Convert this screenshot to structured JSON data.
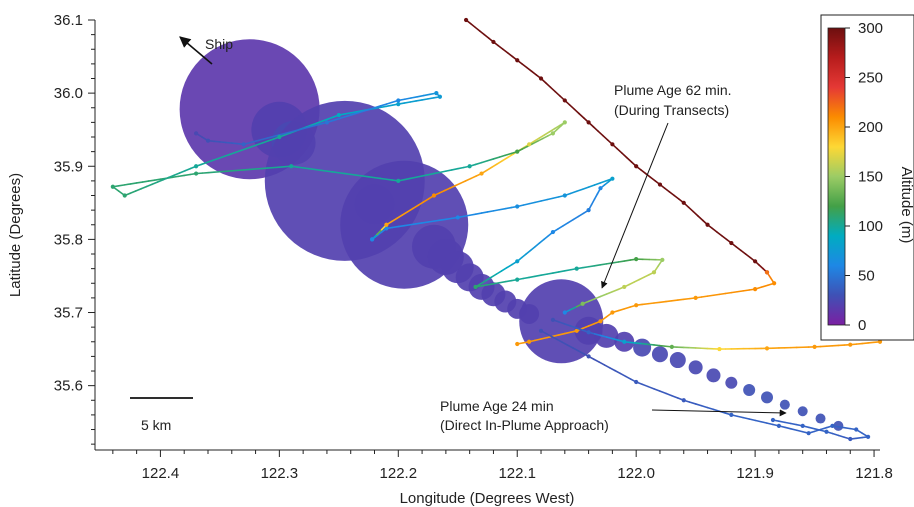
{
  "chart_data": {
    "type": "scatter",
    "xlabel": "Longitude (Degrees West)",
    "ylabel": "Latitude (Degrees)",
    "xlim": [
      122.455,
      121.795
    ],
    "ylim": [
      35.512,
      36.1
    ],
    "x_ticks": [
      122.4,
      122.3,
      122.2,
      122.1,
      122.0,
      121.9,
      121.8
    ],
    "x_tick_labels": [
      "122.4",
      "122.3",
      "122.2",
      "122.1",
      "122.0",
      "121.9",
      "121.8"
    ],
    "y_ticks": [
      35.6,
      35.7,
      35.8,
      35.9,
      36.0,
      36.1
    ],
    "y_tick_labels": [
      "35.6",
      "35.7",
      "35.8",
      "35.9",
      "36.0",
      "36.1"
    ],
    "colorbar": {
      "label": "Altitude (m)",
      "min": 0,
      "max": 300,
      "ticks": [
        0,
        50,
        100,
        150,
        200,
        250,
        300
      ],
      "tick_labels": [
        "0",
        "50",
        "100",
        "150",
        "200",
        "250",
        "300"
      ],
      "colors": [
        "#7b1fa2",
        "#3f51b5",
        "#1e88e5",
        "#00acc1",
        "#43a047",
        "#9ccc65",
        "#fdd835",
        "#fb8c00",
        "#e53935",
        "#b71c1c",
        "#6d0f0f"
      ]
    },
    "annotations": {
      "ship_label": "Ship",
      "plume62_line1": "Plume Age 62 min.",
      "plume62_line2": "(During Transects)",
      "plume24_line1": "Plume Age 24 min",
      "plume24_line2": "(Direct In-Plume Approach)",
      "scale_label": "5 km"
    },
    "series": [
      {
        "points": [
          [
            122.143,
            36.1,
            300
          ],
          [
            122.12,
            36.07,
            300
          ],
          [
            122.1,
            36.045,
            300
          ],
          [
            122.08,
            36.02,
            300
          ],
          [
            122.06,
            35.99,
            300
          ],
          [
            122.04,
            35.96,
            300
          ],
          [
            122.02,
            35.93,
            300
          ],
          [
            122.0,
            35.9,
            300
          ],
          [
            121.98,
            35.875,
            300
          ],
          [
            121.96,
            35.85,
            300
          ],
          [
            121.94,
            35.82,
            300
          ],
          [
            121.92,
            35.795,
            300
          ],
          [
            121.9,
            35.77,
            300
          ],
          [
            121.89,
            35.755,
            290
          ]
        ]
      },
      {
        "points": [
          [
            121.89,
            35.755,
            220
          ],
          [
            121.884,
            35.74,
            210
          ],
          [
            121.9,
            35.732,
            210
          ],
          [
            121.95,
            35.72,
            205
          ],
          [
            122.0,
            35.71,
            205
          ],
          [
            122.02,
            35.7,
            205
          ],
          [
            122.03,
            35.688,
            205
          ],
          [
            122.05,
            35.675,
            205
          ],
          [
            122.09,
            35.66,
            205
          ],
          [
            122.1,
            35.657,
            205
          ]
        ]
      },
      {
        "points": [
          [
            122.07,
            35.69,
            30
          ],
          [
            122.04,
            35.673,
            40
          ],
          [
            122.01,
            35.66,
            80
          ],
          [
            121.97,
            35.653,
            130
          ],
          [
            121.93,
            35.65,
            180
          ],
          [
            121.89,
            35.651,
            200
          ],
          [
            121.85,
            35.653,
            205
          ],
          [
            121.82,
            35.656,
            205
          ],
          [
            121.795,
            35.66,
            205
          ]
        ]
      },
      {
        "points": [
          [
            122.06,
            35.7,
            60
          ],
          [
            122.045,
            35.712,
            140
          ],
          [
            122.01,
            35.735,
            160
          ],
          [
            121.985,
            35.755,
            160
          ],
          [
            121.978,
            35.772,
            150
          ],
          [
            122.0,
            35.773,
            120
          ],
          [
            122.05,
            35.76,
            100
          ],
          [
            122.1,
            35.745,
            100
          ],
          [
            122.135,
            35.735,
            110
          ]
        ]
      },
      {
        "points": [
          [
            122.135,
            35.735,
            110
          ],
          [
            122.1,
            35.77,
            80
          ],
          [
            122.07,
            35.81,
            60
          ],
          [
            122.04,
            35.84,
            55
          ],
          [
            122.03,
            35.87,
            60
          ],
          [
            122.02,
            35.883,
            80
          ],
          [
            122.06,
            35.86,
            70
          ],
          [
            122.1,
            35.845,
            65
          ],
          [
            122.15,
            35.83,
            60
          ],
          [
            122.21,
            35.815,
            60
          ],
          [
            122.222,
            35.8,
            60
          ]
        ]
      },
      {
        "points": [
          [
            122.222,
            35.8,
            60
          ],
          [
            122.21,
            35.82,
            200
          ],
          [
            122.17,
            35.86,
            210
          ],
          [
            122.13,
            35.89,
            200
          ],
          [
            122.09,
            35.93,
            170
          ],
          [
            122.06,
            35.96,
            150
          ],
          [
            122.07,
            35.945,
            150
          ],
          [
            122.1,
            35.92,
            120
          ],
          [
            122.14,
            35.9,
            100
          ],
          [
            122.2,
            35.88,
            100
          ],
          [
            122.29,
            35.9,
            100
          ],
          [
            122.37,
            35.89,
            110
          ],
          [
            122.44,
            35.872,
            110
          ],
          [
            122.43,
            35.86,
            110
          ],
          [
            122.37,
            35.9,
            100
          ],
          [
            122.3,
            35.94,
            100
          ],
          [
            122.25,
            35.97,
            90
          ],
          [
            122.2,
            35.985,
            80
          ],
          [
            122.165,
            35.995,
            75
          ],
          [
            122.168,
            36.0,
            70
          ],
          [
            122.2,
            35.99,
            60
          ],
          [
            122.26,
            35.96,
            50
          ],
          [
            122.33,
            35.93,
            40
          ],
          [
            122.36,
            35.935,
            30
          ],
          [
            122.37,
            35.945,
            25
          ]
        ]
      },
      {
        "points": [
          [
            121.885,
            35.553,
            40
          ],
          [
            121.86,
            35.545,
            40
          ],
          [
            121.84,
            35.537,
            40
          ],
          [
            121.82,
            35.527,
            35
          ],
          [
            121.805,
            35.53,
            40
          ],
          [
            121.815,
            35.54,
            40
          ],
          [
            121.835,
            35.545,
            40
          ],
          [
            121.855,
            35.535,
            40
          ],
          [
            121.88,
            35.545,
            40
          ],
          [
            121.92,
            35.56,
            40
          ],
          [
            121.96,
            35.58,
            35
          ],
          [
            122.0,
            35.605,
            35
          ],
          [
            122.04,
            35.64,
            30
          ],
          [
            122.08,
            35.675,
            30
          ]
        ]
      }
    ],
    "markers": [
      [
        122.325,
        35.978,
        15,
        70
      ],
      [
        122.3,
        35.95,
        20,
        28
      ],
      [
        122.288,
        35.932,
        25,
        22
      ],
      [
        122.245,
        35.88,
        20,
        80
      ],
      [
        122.22,
        35.848,
        25,
        20
      ],
      [
        122.195,
        35.82,
        20,
        64
      ],
      [
        122.17,
        35.79,
        20,
        22
      ],
      [
        122.16,
        35.776,
        20,
        18
      ],
      [
        122.15,
        35.762,
        20,
        16
      ],
      [
        122.14,
        35.748,
        20,
        14
      ],
      [
        122.13,
        35.735,
        20,
        13
      ],
      [
        122.12,
        35.725,
        20,
        12
      ],
      [
        122.11,
        35.715,
        20,
        11
      ],
      [
        122.1,
        35.705,
        20,
        10
      ],
      [
        122.09,
        35.698,
        20,
        10
      ],
      [
        122.063,
        35.688,
        20,
        42
      ],
      [
        122.04,
        35.675,
        20,
        14
      ],
      [
        122.025,
        35.668,
        20,
        12
      ],
      [
        122.01,
        35.66,
        20,
        10
      ],
      [
        121.995,
        35.652,
        25,
        9
      ],
      [
        121.98,
        35.643,
        25,
        8
      ],
      [
        121.965,
        35.635,
        25,
        8
      ],
      [
        121.95,
        35.625,
        25,
        7
      ],
      [
        121.935,
        35.614,
        25,
        7
      ],
      [
        121.92,
        35.604,
        25,
        6
      ],
      [
        121.905,
        35.594,
        30,
        6
      ],
      [
        121.89,
        35.584,
        30,
        6
      ],
      [
        121.875,
        35.574,
        30,
        5
      ],
      [
        121.86,
        35.565,
        30,
        5
      ],
      [
        121.845,
        35.555,
        30,
        5
      ],
      [
        121.83,
        35.545,
        30,
        5
      ]
    ]
  }
}
